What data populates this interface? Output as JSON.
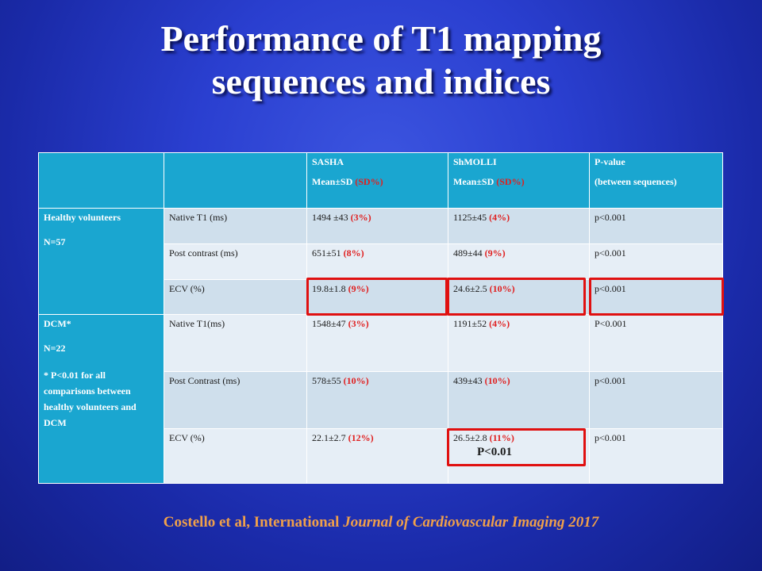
{
  "title": {
    "line1": "Performance of T1 mapping",
    "line2": "sequences and indices"
  },
  "table": {
    "header": {
      "sasha_name": "SASHA",
      "shmolli_name": "ShMOLLI",
      "sub_mean": "Mean±SD ",
      "sub_sd": "(SD%)",
      "pvalue_label": "P-value",
      "pvalue_sub": "(between sequences)"
    },
    "groups": [
      {
        "name": "Healthy volunteers",
        "n": "N=57",
        "rows": [
          {
            "measure": "Native T1 (ms)",
            "sasha": "1494 ±43 ",
            "sasha_pct": "(3%)",
            "shmolli": "1125±45 ",
            "shmolli_pct": "(4%)",
            "p": "p<0.001"
          },
          {
            "measure": "Post contrast (ms)",
            "sasha": "651±51 ",
            "sasha_pct": "(8%)",
            "shmolli": "489±44 ",
            "shmolli_pct": "(9%)",
            "p": "p<0.001"
          },
          {
            "measure": "ECV (%)",
            "sasha": "19.8±1.8 ",
            "sasha_pct": "(9%)",
            "shmolli": "24.6±2.5 ",
            "shmolli_pct": "(10%)",
            "p": "p<0.001"
          }
        ]
      },
      {
        "name": "DCM*",
        "n": "N=22",
        "note": " * P<0.01 for all comparisons between healthy volunteers and DCM",
        "rows": [
          {
            "measure": "Native T1(ms)",
            "sasha": "1548±47 ",
            "sasha_pct": "(3%)",
            "shmolli": "1191±52 ",
            "shmolli_pct": "(4%)",
            "p": "P<0.001"
          },
          {
            "measure": "Post Contrast (ms)",
            "sasha": "578±55 ",
            "sasha_pct": "(10%)",
            "shmolli": "439±43 ",
            "shmolli_pct": "(10%)",
            "p": "p<0.001"
          },
          {
            "measure": "ECV (%)",
            "sasha": "22.1±2.7 ",
            "sasha_pct": "(12%)",
            "shmolli": "26.5±2.8 ",
            "shmolli_pct": "(11%)",
            "shmolli_note": "P<0.01",
            "p": "p<0.001"
          }
        ]
      }
    ]
  },
  "citation": {
    "authors": "Costello et al, International ",
    "journal": "Journal of Cardiovascular Imaging 2017"
  },
  "colors": {
    "background": "#2a3fd0",
    "header_cell": "#1aa6d0",
    "highlight_box": "#e01010",
    "citation": "#f0a04a",
    "percent_text": "#e02020"
  }
}
